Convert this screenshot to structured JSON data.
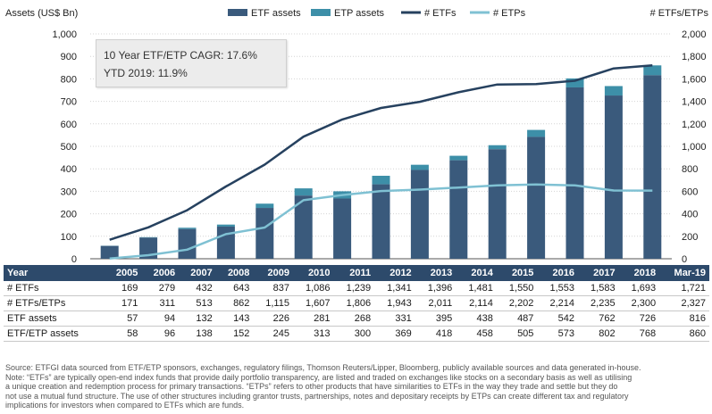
{
  "left_axis_title": "Assets (US$ Bn)",
  "right_axis_title": "# ETFs/ETPs",
  "legend": [
    {
      "key": "etf_assets",
      "label": "ETF assets",
      "color": "#3a5a7c",
      "kind": "bar"
    },
    {
      "key": "etp_assets",
      "label": "ETP assets",
      "color": "#3d8fa8",
      "kind": "bar"
    },
    {
      "key": "n_etfs",
      "label": "# ETFs",
      "color": "#26415f",
      "kind": "line"
    },
    {
      "key": "n_etps",
      "label": "# ETPs",
      "color": "#7fc1d3",
      "kind": "line"
    }
  ],
  "annotation": {
    "line1": "10 Year ETF/ETP CAGR: 17.6%",
    "line2": "YTD 2019: 11.9%"
  },
  "left_ticks": [
    "0",
    "100",
    "200",
    "300",
    "400",
    "500",
    "600",
    "700",
    "800",
    "900",
    "1,000"
  ],
  "right_ticks": [
    "0",
    "200",
    "400",
    "600",
    "800",
    "1,000",
    "1,200",
    "1,400",
    "1,600",
    "1,800",
    "2,000"
  ],
  "chart_data": {
    "type": "bar",
    "categories": [
      "2005",
      "2006",
      "2007",
      "2008",
      "2009",
      "2010",
      "2011",
      "2012",
      "2013",
      "2014",
      "2015",
      "2016",
      "2017",
      "2018",
      "Mar-19"
    ],
    "ylim": [
      0,
      1000
    ],
    "y2lim": [
      0,
      2000
    ],
    "series": [
      {
        "name": "ETF assets",
        "type": "bar",
        "axis": "left",
        "values": [
          57,
          94,
          132,
          143,
          226,
          281,
          268,
          331,
          395,
          438,
          487,
          542,
          762,
          726,
          816
        ]
      },
      {
        "name": "ETP assets",
        "type": "bar",
        "axis": "left",
        "stacked_total": true,
        "values": [
          58,
          96,
          138,
          152,
          245,
          313,
          300,
          369,
          418,
          458,
          505,
          573,
          802,
          768,
          860
        ]
      },
      {
        "name": "# ETFs",
        "type": "line",
        "axis": "right",
        "values": [
          169,
          279,
          432,
          643,
          837,
          1086,
          1239,
          1341,
          1396,
          1481,
          1550,
          1553,
          1583,
          1693,
          1721
        ]
      },
      {
        "name": "# ETPs",
        "type": "line",
        "axis": "right",
        "values": [
          2,
          32,
          81,
          219,
          278,
          521,
          567,
          602,
          615,
          633,
          652,
          661,
          652,
          607,
          606
        ]
      }
    ]
  },
  "table": {
    "header": [
      "Year",
      "2005",
      "2006",
      "2007",
      "2008",
      "2009",
      "2010",
      "2011",
      "2012",
      "2013",
      "2014",
      "2015",
      "2016",
      "2017",
      "2018",
      "Mar-19"
    ],
    "rows": [
      [
        "# ETFs",
        "169",
        "279",
        "432",
        "643",
        "837",
        "1,086",
        "1,239",
        "1,341",
        "1,396",
        "1,481",
        "1,550",
        "1,553",
        "1,583",
        "1,693",
        "1,721"
      ],
      [
        "# ETFs/ETPs",
        "171",
        "311",
        "513",
        "862",
        "1,115",
        "1,607",
        "1,806",
        "1,943",
        "2,011",
        "2,114",
        "2,202",
        "2,214",
        "2,235",
        "2,300",
        "2,327"
      ],
      [
        "ETF assets",
        "57",
        "94",
        "132",
        "143",
        "226",
        "281",
        "268",
        "331",
        "395",
        "438",
        "487",
        "542",
        "762",
        "726",
        "816"
      ],
      [
        "ETF/ETP assets",
        "58",
        "96",
        "138",
        "152",
        "245",
        "313",
        "300",
        "369",
        "418",
        "458",
        "505",
        "573",
        "802",
        "768",
        "860"
      ]
    ]
  },
  "notes": {
    "source": "Source: ETFGI data sourced from ETF/ETP sponsors, exchanges, regulatory filings, Thomson Reuters/Lipper, Bloomberg, publicly available sources and data generated in-house.",
    "note1": "Note: “ETFs” are typically open-end index funds that provide daily portfolio transparency, are listed and traded on exchanges like stocks on a secondary basis as well as utilising",
    "note2": "a unique creation and redemption process for primary transactions. “ETPs” refers to other products that have similarities to ETFs in the way they trade and settle but they do",
    "note3": "not use a mutual fund structure. The use of other structures including grantor trusts, partnerships, notes and depositary receipts by ETPs can create different tax and regulatory",
    "note4": "implications for investors when compared to ETFs which are funds."
  }
}
